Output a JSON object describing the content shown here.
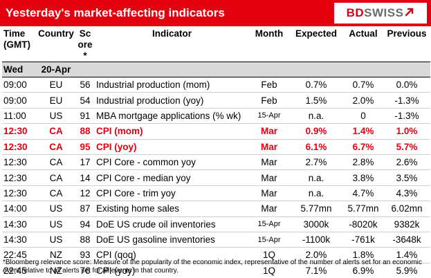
{
  "header": {
    "title": "Yesterday's market-affecting indicators",
    "logo_text_main": "BD",
    "logo_text_accent": "SWISS",
    "logo_icon": "arrow-up-right-icon"
  },
  "columns": {
    "time": "Time (GMT)",
    "country": "Country",
    "score": "Score*",
    "indicator": "Indicator",
    "month": "Month",
    "expected": "Expected",
    "actual": "Actual",
    "previous": "Previous"
  },
  "day": {
    "weekday": "Wed",
    "date": "20-Apr"
  },
  "rows": [
    {
      "time": "09:00",
      "country": "EU",
      "score": "56",
      "indicator": "Industrial production (mom)",
      "month": "Feb",
      "expected": "0.7%",
      "actual": "0.7%",
      "previous": "0.0%"
    },
    {
      "time": "09:00",
      "country": "EU",
      "score": "54",
      "indicator": "Industrial production (yoy)",
      "month": "Feb",
      "expected": "1.5%",
      "actual": "2.0%",
      "previous": "-1.3%"
    },
    {
      "time": "11:00",
      "country": "US",
      "score": "91",
      "indicator": "MBA mortgage applications (% wk)",
      "month": "15-Apr",
      "expected": "n.a.",
      "actual": "0",
      "previous": "-1.3%"
    },
    {
      "time": "12:30",
      "country": "CA",
      "score": "88",
      "indicator": "CPI (mom)",
      "month": "Mar",
      "expected": "0.9%",
      "actual": "1.4%",
      "previous": "1.0%"
    },
    {
      "time": "12:30",
      "country": "CA",
      "score": "95",
      "indicator": "CPI (yoy)",
      "month": "Mar",
      "expected": "6.1%",
      "actual": "6.7%",
      "previous": "5.7%"
    },
    {
      "time": "12:30",
      "country": "CA",
      "score": "17",
      "indicator": "CPI Core - common yoy",
      "month": "Mar",
      "expected": "2.7%",
      "actual": "2.8%",
      "previous": "2.6%"
    },
    {
      "time": "12:30",
      "country": "CA",
      "score": "14",
      "indicator": "CPI Core - median yoy",
      "month": "Mar",
      "expected": "n.a.",
      "actual": "3.8%",
      "previous": "3.5%"
    },
    {
      "time": "12:30",
      "country": "CA",
      "score": "12",
      "indicator": "CPI Core - trim yoy",
      "month": "Mar",
      "expected": "n.a.",
      "actual": "4.7%",
      "previous": "4.3%"
    },
    {
      "time": "14:00",
      "country": "US",
      "score": "87",
      "indicator": "Existing home sales",
      "month": "Mar",
      "expected": "5.77mn",
      "actual": "5.77mn",
      "previous": "6.02mn"
    },
    {
      "time": "14:30",
      "country": "US",
      "score": "94",
      "indicator": "DoE US crude oil inventories",
      "month": "15-Apr",
      "expected": "3000k",
      "actual": "-8020k",
      "previous": "9382k"
    },
    {
      "time": "14:30",
      "country": "US",
      "score": "88",
      "indicator": "DoE US gasoline inventories",
      "month": "15-Apr",
      "expected": "-1100k",
      "actual": "-761k",
      "previous": "-3648k"
    },
    {
      "time": "22:45",
      "country": "NZ",
      "score": "93",
      "indicator": "CPI (qoq)",
      "month": "1Q",
      "expected": "2.0%",
      "actual": "1.8%",
      "previous": "1.4%"
    },
    {
      "time": "22:45",
      "country": "NZ",
      "score": "76",
      "indicator": "CPI (yoy)",
      "month": "1Q",
      "expected": "7.1%",
      "actual": "6.9%",
      "previous": "5.9%"
    }
  ],
  "highlight_rows": [
    3,
    4
  ],
  "colors": {
    "header_bg": "#e3000f",
    "highlight_text": "#e3000f",
    "day_bg": "#d9d9d9"
  },
  "footnote": "*Bloomberg relevance score:  Measure of the popularity of the economic index, representative of the number of alerts set for an economic event relative to all alerts set for all events in that country."
}
